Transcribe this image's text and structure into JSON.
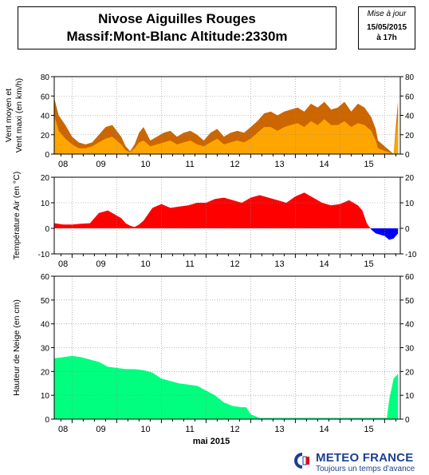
{
  "header": {
    "title_line1": "Nivose Aiguilles Rouges",
    "title_line2": "Massif:Mont-Blanc Altitude:2330m",
    "update_label": "Mise à jour",
    "update_date": "15/05/2015",
    "update_time": "à 17h"
  },
  "footer": {
    "logo_name": "METEO FRANCE",
    "logo_tagline": "Toujours un temps d'avance"
  },
  "chart_data": [
    {
      "type": "area",
      "ylabel": "Vent moyen et\nVent maxi (en km/h)",
      "ylim": [
        0,
        80
      ],
      "yticks": [
        0,
        20,
        40,
        60,
        80
      ],
      "x_range_days": [
        7.6,
        15.35
      ],
      "x_tick_labels": [
        "08",
        "09",
        "10",
        "11",
        "12",
        "13",
        "14",
        "15"
      ],
      "x_tick_positions": [
        8,
        9,
        10,
        11,
        12,
        13,
        14,
        15
      ],
      "grid": true,
      "series": [
        {
          "name": "",
          "color": "#cc6600",
          "x": [
            7.6,
            7.7,
            7.85,
            8.0,
            8.15,
            8.3,
            8.45,
            8.6,
            8.75,
            8.9,
            9.0,
            9.1,
            9.2,
            9.3,
            9.4,
            9.5,
            9.6,
            9.75,
            9.9,
            10.05,
            10.2,
            10.35,
            10.5,
            10.65,
            10.8,
            10.95,
            11.1,
            11.25,
            11.4,
            11.55,
            11.7,
            11.85,
            12.0,
            12.15,
            12.3,
            12.45,
            12.6,
            12.75,
            12.9,
            13.05,
            13.2,
            13.35,
            13.5,
            13.65,
            13.8,
            13.95,
            14.1,
            14.25,
            14.4,
            14.55,
            14.7,
            14.8,
            14.85,
            15.2,
            15.3
          ],
          "values": [
            58,
            40,
            30,
            18,
            12,
            10,
            12,
            20,
            28,
            30,
            24,
            18,
            8,
            3,
            10,
            22,
            28,
            14,
            18,
            22,
            24,
            18,
            22,
            24,
            20,
            14,
            22,
            26,
            18,
            22,
            24,
            22,
            28,
            34,
            42,
            44,
            40,
            44,
            46,
            48,
            44,
            52,
            48,
            54,
            46,
            48,
            54,
            44,
            52,
            48,
            38,
            26,
            14,
            0,
            55
          ]
        },
        {
          "name": "",
          "color": "#ffa500",
          "x": [
            7.6,
            7.7,
            7.85,
            8.0,
            8.15,
            8.3,
            8.45,
            8.6,
            8.75,
            8.9,
            9.0,
            9.1,
            9.2,
            9.3,
            9.4,
            9.5,
            9.6,
            9.75,
            9.9,
            10.05,
            10.2,
            10.35,
            10.5,
            10.65,
            10.8,
            10.95,
            11.1,
            11.25,
            11.4,
            11.55,
            11.7,
            11.85,
            12.0,
            12.15,
            12.3,
            12.45,
            12.6,
            12.75,
            12.9,
            13.05,
            13.2,
            13.35,
            13.5,
            13.65,
            13.8,
            13.95,
            14.1,
            14.25,
            14.4,
            14.55,
            14.7,
            14.8,
            14.85,
            15.2,
            15.3
          ],
          "values": [
            40,
            24,
            16,
            10,
            6,
            6,
            8,
            12,
            16,
            18,
            14,
            10,
            4,
            2,
            6,
            12,
            14,
            8,
            10,
            12,
            14,
            10,
            12,
            14,
            10,
            8,
            12,
            16,
            10,
            12,
            14,
            12,
            16,
            22,
            28,
            28,
            24,
            28,
            30,
            32,
            28,
            34,
            30,
            36,
            30,
            30,
            34,
            28,
            32,
            30,
            24,
            14,
            6,
            0,
            40
          ]
        }
      ]
    },
    {
      "type": "area",
      "ylabel": "Température Air (en °C)",
      "ylim": [
        -10,
        20
      ],
      "yticks": [
        -10,
        0,
        10,
        20
      ],
      "x_range_days": [
        7.6,
        15.35
      ],
      "x_tick_labels": [
        "08",
        "09",
        "10",
        "11",
        "12",
        "13",
        "14",
        "15"
      ],
      "x_tick_positions": [
        8,
        9,
        10,
        11,
        12,
        13,
        14,
        15
      ],
      "grid": true,
      "series": [
        {
          "name": "",
          "color_positive": "#ff0000",
          "color_negative": "#0000ff",
          "x": [
            7.6,
            7.8,
            8.0,
            8.2,
            8.4,
            8.6,
            8.8,
            9.0,
            9.1,
            9.2,
            9.3,
            9.4,
            9.5,
            9.6,
            9.8,
            10.0,
            10.2,
            10.4,
            10.6,
            10.8,
            11.0,
            11.2,
            11.4,
            11.6,
            11.8,
            12.0,
            12.2,
            12.4,
            12.6,
            12.8,
            13.0,
            13.2,
            13.4,
            13.6,
            13.8,
            14.0,
            14.2,
            14.4,
            14.5,
            14.6,
            14.7,
            14.8,
            15.0,
            15.1,
            15.2,
            15.3
          ],
          "values": [
            2,
            1.5,
            1.5,
            1.8,
            2,
            6,
            7,
            5,
            4,
            2,
            1,
            0.5,
            1.5,
            3,
            8,
            9.5,
            8,
            8.5,
            9,
            10,
            10,
            11.5,
            12,
            11,
            10,
            12,
            13,
            12,
            11,
            10,
            12.5,
            14,
            12,
            10,
            9,
            9.5,
            11,
            9,
            7,
            2,
            -0.5,
            -2,
            -3,
            -4.5,
            -4,
            -2
          ]
        }
      ]
    },
    {
      "type": "area",
      "xlabel": "mai 2015",
      "ylabel": "Hauteur de Neige (en cm)",
      "ylim": [
        0,
        60
      ],
      "yticks": [
        0,
        10,
        20,
        30,
        40,
        50,
        60
      ],
      "x_range_days": [
        7.6,
        15.35
      ],
      "x_tick_labels": [
        "08",
        "09",
        "10",
        "11",
        "12",
        "13",
        "14",
        "15"
      ],
      "x_tick_positions": [
        8,
        9,
        10,
        11,
        12,
        13,
        14,
        15
      ],
      "grid": true,
      "series": [
        {
          "name": "",
          "color": "#00ff7f",
          "x": [
            7.6,
            7.8,
            8.0,
            8.2,
            8.4,
            8.6,
            8.8,
            9.0,
            9.2,
            9.4,
            9.6,
            9.8,
            10.0,
            10.2,
            10.4,
            10.6,
            10.8,
            11.0,
            11.2,
            11.4,
            11.6,
            11.8,
            11.9,
            12.0,
            12.2,
            12.4,
            12.6,
            12.8,
            13.0,
            13.2,
            13.4,
            13.6,
            13.8,
            14.0,
            14.2,
            14.4,
            14.6,
            14.8,
            14.9,
            15.0,
            15.05,
            15.1,
            15.2,
            15.3
          ],
          "values": [
            25.5,
            26,
            26.5,
            26,
            25,
            24,
            22,
            21.5,
            21,
            21,
            20.5,
            19.5,
            17,
            16,
            15,
            14.5,
            14,
            12,
            10,
            7,
            5.5,
            5,
            5,
            2,
            0.5,
            0.5,
            0.5,
            0.5,
            0.5,
            0.5,
            0.5,
            0.5,
            0.5,
            0.5,
            0.5,
            0.5,
            0.5,
            0.5,
            0.5,
            0.5,
            0.5,
            8,
            17,
            19
          ]
        }
      ]
    }
  ]
}
